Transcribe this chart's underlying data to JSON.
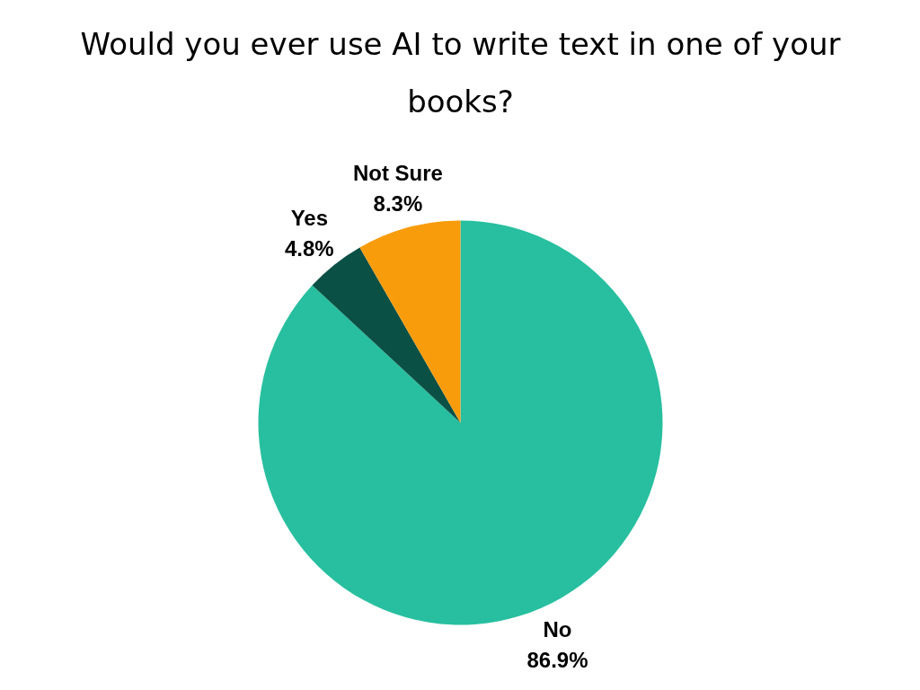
{
  "chart_data": {
    "type": "pie",
    "title": "Would you ever use AI to write text in one of your books?",
    "categories": [
      "No",
      "Yes",
      "Not Sure"
    ],
    "values": [
      86.9,
      4.8,
      8.3
    ],
    "colors": [
      "#27bf9f",
      "#0b5045",
      "#f99c0c"
    ],
    "value_labels": [
      "86.9%",
      "4.8%",
      "8.3%"
    ],
    "legend": false
  }
}
